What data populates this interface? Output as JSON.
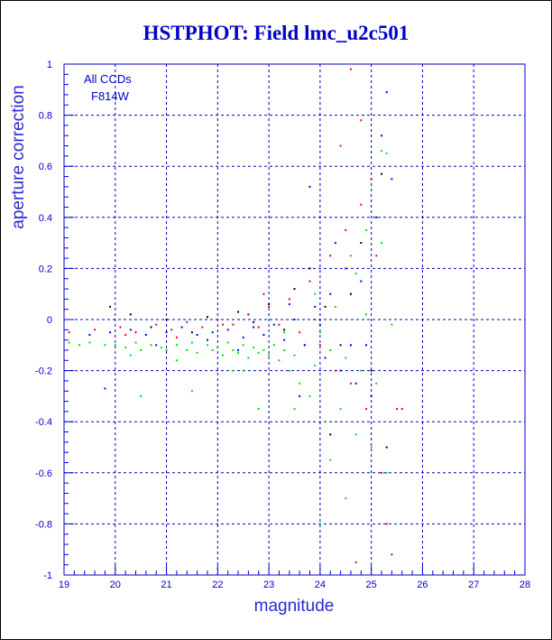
{
  "colors": {
    "axis": "#0000cc",
    "grid": "#0000cc",
    "series_red": "#e8001c",
    "series_blue": "#0000ee",
    "series_green": "#00e000",
    "series_black": "#000000"
  },
  "chart_data": {
    "type": "scatter",
    "title": "HSTPHOT: Field lmc_u2c501",
    "xlabel": "magnitude",
    "ylabel": "aperture correction",
    "xlim": [
      19,
      28
    ],
    "ylim": [
      -1,
      1
    ],
    "x_ticks": [
      "19",
      "20",
      "21",
      "22",
      "23",
      "24",
      "25",
      "26",
      "27",
      "28"
    ],
    "y_ticks": [
      "-1",
      "-0.8",
      "-0.6",
      "-0.4",
      "-0.2",
      "0",
      "0.2",
      "0.4",
      "0.6",
      "0.8",
      "1"
    ],
    "grid": true,
    "annotation": [
      "All CCDs",
      "F814W"
    ],
    "annotation_position": "top-left",
    "series": [
      {
        "color_key": "series_green",
        "points": [
          [
            19.1,
            -0.09
          ],
          [
            19.3,
            -0.1
          ],
          [
            19.5,
            -0.09
          ],
          [
            19.8,
            -0.1
          ],
          [
            20.0,
            -0.1
          ],
          [
            20.2,
            -0.11
          ],
          [
            20.4,
            -0.09
          ],
          [
            20.5,
            -0.12
          ],
          [
            20.7,
            -0.1
          ],
          [
            20.9,
            -0.11
          ],
          [
            21.0,
            -0.12
          ],
          [
            21.2,
            -0.1
          ],
          [
            21.4,
            -0.12
          ],
          [
            21.5,
            -0.09
          ],
          [
            21.6,
            -0.13
          ],
          [
            21.8,
            -0.1
          ],
          [
            21.9,
            -0.12
          ],
          [
            22.0,
            -0.11
          ],
          [
            22.1,
            -0.14
          ],
          [
            22.2,
            -0.09
          ],
          [
            22.3,
            -0.12
          ],
          [
            22.4,
            -0.13
          ],
          [
            22.5,
            -0.1
          ],
          [
            22.6,
            -0.15
          ],
          [
            22.7,
            -0.11
          ],
          [
            22.8,
            -0.13
          ],
          [
            22.9,
            -0.12
          ],
          [
            23.0,
            -0.14
          ],
          [
            23.1,
            -0.1
          ],
          [
            23.2,
            -0.16
          ],
          [
            23.3,
            -0.12
          ],
          [
            23.4,
            -0.2
          ],
          [
            23.5,
            -0.14
          ],
          [
            23.6,
            -0.25
          ],
          [
            23.7,
            -0.1
          ],
          [
            23.8,
            -0.3
          ],
          [
            23.9,
            -0.18
          ],
          [
            24.0,
            -0.05
          ],
          [
            24.1,
            -0.4
          ],
          [
            24.2,
            -0.12
          ],
          [
            24.3,
            0.05
          ],
          [
            24.4,
            -0.35
          ],
          [
            24.5,
            -0.15
          ],
          [
            24.6,
            0.1
          ],
          [
            24.7,
            -0.45
          ],
          [
            24.8,
            -0.2
          ],
          [
            24.9,
            0.02
          ],
          [
            25.0,
            -0.5
          ],
          [
            25.1,
            -0.25
          ],
          [
            25.2,
            0.3
          ],
          [
            25.3,
            -0.6
          ],
          [
            25.2,
            0.66
          ],
          [
            25.3,
            0.65
          ],
          [
            24.9,
            0.35
          ],
          [
            24.6,
            0.25
          ],
          [
            24.2,
            -0.55
          ],
          [
            23.5,
            -0.35
          ],
          [
            22.8,
            -0.35
          ],
          [
            22.3,
            -0.2
          ],
          [
            21.5,
            -0.28
          ],
          [
            20.5,
            -0.3
          ],
          [
            24.5,
            -0.7
          ],
          [
            24.0,
            -0.8
          ],
          [
            25.1,
            0.4
          ],
          [
            25.4,
            -0.02
          ],
          [
            24.7,
            0.18
          ],
          [
            23.9,
            0.1
          ],
          [
            23.3,
            -0.05
          ],
          [
            22.5,
            -0.2
          ],
          [
            21.2,
            -0.16
          ],
          [
            20.3,
            -0.14
          ]
        ]
      },
      {
        "color_key": "series_blue",
        "points": [
          [
            19.5,
            -0.06
          ],
          [
            19.9,
            -0.05
          ],
          [
            20.3,
            -0.04
          ],
          [
            20.6,
            -0.06
          ],
          [
            21.0,
            -0.05
          ],
          [
            21.3,
            -0.03
          ],
          [
            21.6,
            -0.06
          ],
          [
            21.9,
            -0.05
          ],
          [
            22.2,
            -0.04
          ],
          [
            22.5,
            -0.07
          ],
          [
            22.7,
            -0.03
          ],
          [
            22.9,
            -0.06
          ],
          [
            23.1,
            -0.02
          ],
          [
            23.3,
            -0.08
          ],
          [
            23.5,
            0.0
          ],
          [
            23.7,
            -0.1
          ],
          [
            23.9,
            0.05
          ],
          [
            24.1,
            -0.15
          ],
          [
            24.2,
            0.1
          ],
          [
            24.4,
            -0.2
          ],
          [
            24.5,
            0.2
          ],
          [
            24.7,
            -0.25
          ],
          [
            24.8,
            0.15
          ],
          [
            25.0,
            -0.3
          ],
          [
            25.1,
            0.4
          ],
          [
            25.2,
            0.72
          ],
          [
            25.3,
            0.89
          ],
          [
            25.4,
            0.55
          ],
          [
            24.3,
            0.3
          ],
          [
            23.8,
            0.52
          ],
          [
            24.6,
            -0.1
          ],
          [
            23.6,
            -0.3
          ],
          [
            22.4,
            -0.12
          ],
          [
            21.8,
            -0.08
          ],
          [
            20.8,
            -0.1
          ],
          [
            19.8,
            -0.27
          ],
          [
            24.0,
            -0.02
          ],
          [
            24.9,
            -0.1
          ],
          [
            23.4,
            0.06
          ],
          [
            22.6,
            0.02
          ]
        ]
      },
      {
        "color_key": "series_red",
        "points": [
          [
            19.1,
            -0.05
          ],
          [
            19.6,
            -0.04
          ],
          [
            20.1,
            -0.03
          ],
          [
            20.4,
            -0.05
          ],
          [
            20.8,
            -0.02
          ],
          [
            21.1,
            -0.04
          ],
          [
            21.4,
            -0.01
          ],
          [
            21.7,
            -0.03
          ],
          [
            22.0,
            0.0
          ],
          [
            22.3,
            -0.02
          ],
          [
            22.6,
            0.02
          ],
          [
            22.8,
            -0.03
          ],
          [
            23.0,
            0.05
          ],
          [
            23.2,
            -0.02
          ],
          [
            23.4,
            0.08
          ],
          [
            23.6,
            -0.05
          ],
          [
            23.8,
            0.15
          ],
          [
            24.0,
            -0.1
          ],
          [
            24.2,
            0.25
          ],
          [
            24.3,
            -0.2
          ],
          [
            24.5,
            0.35
          ],
          [
            24.6,
            -0.25
          ],
          [
            24.8,
            0.45
          ],
          [
            24.9,
            -0.35
          ],
          [
            25.0,
            0.55
          ],
          [
            25.2,
            -0.6
          ],
          [
            25.3,
            -0.8
          ],
          [
            25.5,
            -0.35
          ],
          [
            25.4,
            -0.92
          ],
          [
            24.7,
            -0.95
          ],
          [
            24.6,
            0.98
          ],
          [
            24.8,
            0.78
          ],
          [
            24.4,
            0.68
          ],
          [
            25.1,
            0.25
          ],
          [
            23.9,
            0.0
          ],
          [
            22.9,
            0.1
          ],
          [
            22.1,
            -0.02
          ],
          [
            21.2,
            -0.07
          ],
          [
            20.2,
            -0.06
          ],
          [
            25.6,
            -0.35
          ]
        ]
      },
      {
        "color_key": "series_black",
        "points": [
          [
            20.3,
            0.02
          ],
          [
            21.0,
            0.0
          ],
          [
            21.8,
            0.01
          ],
          [
            22.4,
            0.03
          ],
          [
            23.0,
            0.06
          ],
          [
            23.5,
            0.12
          ],
          [
            23.8,
            0.2
          ],
          [
            24.1,
            0.05
          ],
          [
            24.4,
            -0.1
          ],
          [
            24.8,
            0.3
          ],
          [
            25.0,
            -0.2
          ],
          [
            25.2,
            0.57
          ],
          [
            25.3,
            -0.5
          ],
          [
            24.6,
            0.1
          ],
          [
            23.3,
            -0.04
          ],
          [
            22.7,
            -0.01
          ],
          [
            21.5,
            -0.05
          ],
          [
            20.7,
            -0.03
          ],
          [
            19.9,
            0.05
          ],
          [
            24.2,
            -0.45
          ]
        ]
      }
    ]
  }
}
